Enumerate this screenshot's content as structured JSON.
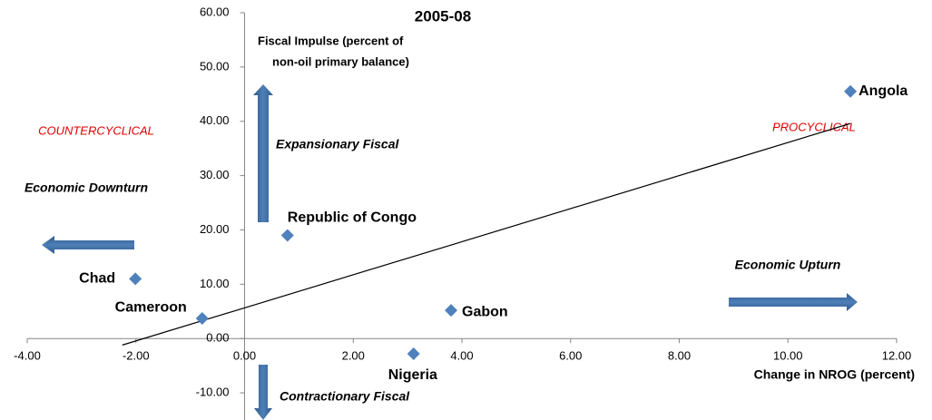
{
  "chart_data": {
    "type": "scatter",
    "title": "2005-08",
    "x_label": "Change in NROG (percent)",
    "y_label": [
      "Fiscal Impulse (percent of",
      "non-oil primary balance)"
    ],
    "annotations": [
      "COUNTERCYCLICAL",
      "PROCYCLICAL",
      "Expansionary Fiscal",
      "Contractionary Fiscal",
      "Economic Downturn",
      "Economic Upturn"
    ],
    "color": "#4f81bd",
    "labels": [
      "Angola",
      "Republic of Congo",
      "Chad",
      "Cameroon",
      "Gabon",
      "Nigeria"
    ],
    "x": [
      11.15,
      0.79,
      -2.01,
      -0.78,
      3.8,
      3.11
    ],
    "values": [
      45.5,
      19.0,
      11.0,
      3.7,
      5.2,
      -2.8
    ],
    "trendline": {
      "x": [
        -2.25,
        11.15
      ],
      "y": [
        -1.2,
        39.6
      ]
    },
    "xlim": [
      -4,
      12
    ],
    "ylim": [
      -15,
      60
    ],
    "xticks": [
      {
        "value": -4,
        "label": "-4.00"
      },
      {
        "value": -2,
        "label": "-2.00"
      },
      {
        "value": 0,
        "label": "0.00"
      },
      {
        "value": 2,
        "label": "2.00"
      },
      {
        "value": 4,
        "label": "4.00"
      },
      {
        "value": 6,
        "label": "6.00"
      },
      {
        "value": 8,
        "label": "8.00"
      },
      {
        "value": 10,
        "label": "10.00"
      },
      {
        "value": 12,
        "label": "12.00"
      }
    ],
    "yticks": [
      {
        "value": -10,
        "label": "-10.00"
      },
      {
        "value": 0,
        "label": "0.00"
      },
      {
        "value": 10,
        "label": "10.00"
      },
      {
        "value": 20,
        "label": "20.00"
      },
      {
        "value": 30,
        "label": "30.00"
      },
      {
        "value": 40,
        "label": "40.00"
      },
      {
        "value": 50,
        "label": "50.00"
      },
      {
        "value": 60,
        "label": "60.00"
      }
    ]
  }
}
